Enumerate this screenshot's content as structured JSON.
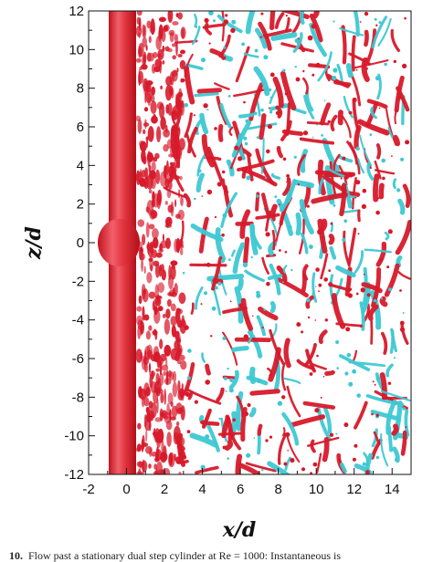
{
  "figure": {
    "xlabel": "x/d",
    "ylabel": "z/d",
    "caption_number": "10.",
    "caption_text": "Flow past a stationary dual step cylinder at Re = 1000: Instantaneous is",
    "colors": {
      "positive": "#d7192a",
      "negative": "#3ec8d3",
      "background": "#ffffff",
      "axis": "#111111"
    }
  },
  "chart_data": {
    "type": "isosurface-plot",
    "xlabel": "x/d",
    "ylabel": "z/d",
    "xlim": [
      -2,
      15
    ],
    "ylim": [
      -12,
      12
    ],
    "x_ticks": [
      -2,
      0,
      2,
      4,
      6,
      8,
      10,
      12,
      14
    ],
    "y_ticks": [
      -12,
      -10,
      -8,
      -6,
      -4,
      -2,
      0,
      2,
      4,
      6,
      8,
      10,
      12
    ],
    "series": [
      {
        "color": "#d7192a"
      },
      {
        "color": "#3ec8d3"
      }
    ]
  }
}
